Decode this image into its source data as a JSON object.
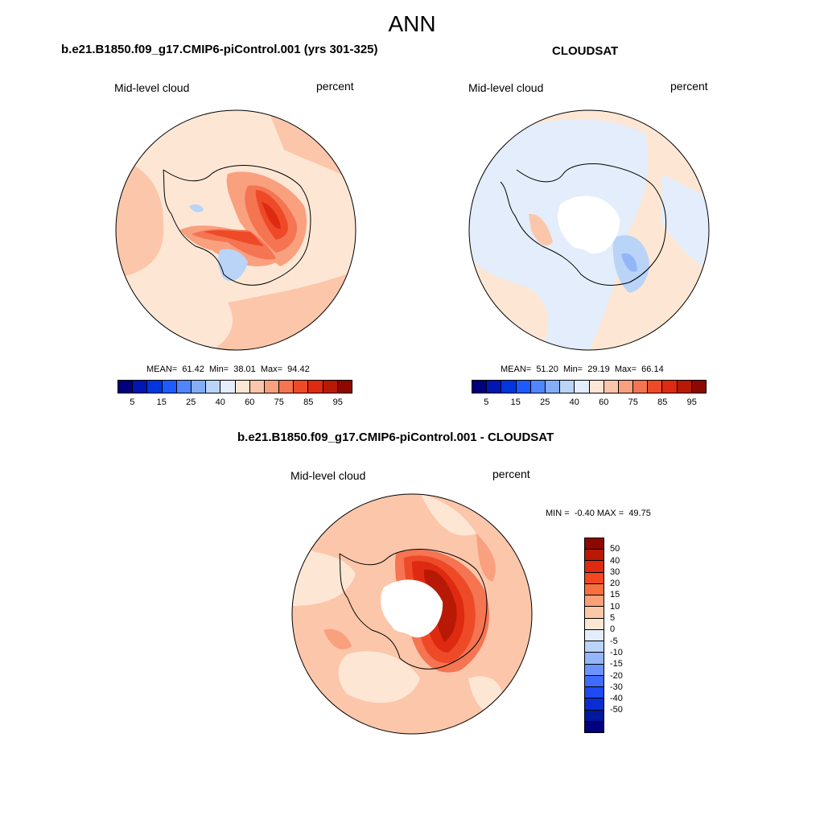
{
  "figure_title": "ANN",
  "panels": {
    "model": {
      "title": "b.e21.B1850.f09_g17.CMIP6-piControl.001 (yrs 301-325)",
      "variable": "Mid-level cloud",
      "units": "percent",
      "stats": "MEAN=  61.42  Min=  38.01  Max=  94.42"
    },
    "obs": {
      "title": "CLOUDSAT",
      "variable": "Mid-level cloud",
      "units": "percent",
      "stats": "MEAN=  51.20  Min=  29.19  Max=  66.14"
    },
    "diff": {
      "title": "b.e21.B1850.f09_g17.CMIP6-piControl.001 - CLOUDSAT",
      "variable": "Mid-level cloud",
      "units": "percent",
      "stats": "MIN =  -0.40 MAX =  49.75"
    }
  },
  "colorbar_abs": {
    "colors": [
      "#00007f",
      "#0017b4",
      "#0036dd",
      "#1e5bff",
      "#4f86ff",
      "#85adf5",
      "#b9d4f7",
      "#e3edfb",
      "#fde7d4",
      "#fcc6aa",
      "#f9a07f",
      "#f57452",
      "#ee4a28",
      "#dd2a10",
      "#b81904",
      "#8c0800"
    ],
    "tick_labels": [
      "5",
      "15",
      "25",
      "40",
      "60",
      "75",
      "85",
      "95"
    ]
  },
  "colorbar_diff": {
    "colors_top_to_bottom": [
      "#8c0800",
      "#b81904",
      "#dd2a10",
      "#f2481f",
      "#f8703f",
      "#faa07a",
      "#fcc9a8",
      "#fde7d4",
      "#e3edfb",
      "#b9d4f7",
      "#94b6f8",
      "#6b94ff",
      "#3f6cff",
      "#1f49f2",
      "#0a2dd2",
      "#00189e",
      "#00007f"
    ],
    "tick_labels": [
      "50",
      "40",
      "30",
      "20",
      "15",
      "10",
      "5",
      "0",
      "-5",
      "-10",
      "-15",
      "-20",
      "-30",
      "-40",
      "-50"
    ]
  }
}
